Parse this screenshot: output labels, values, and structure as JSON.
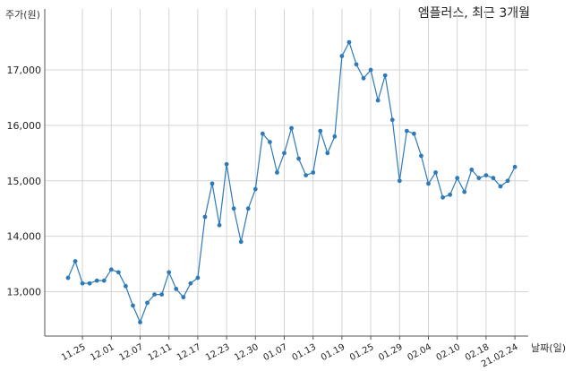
{
  "chart_data": {
    "type": "line",
    "title": "엠플러스, 최근 3개월",
    "ylabel": "주가(원)",
    "xlabel": "날짜(일)",
    "ylim": [
      12200,
      18100
    ],
    "yticks": [
      13000,
      14000,
      15000,
      16000,
      17000
    ],
    "ytick_labels": [
      "13,000",
      "14,000",
      "15,000",
      "16,000",
      "17,000"
    ],
    "xtick_labels": [
      "11.25",
      "12.01",
      "12.07",
      "12.11",
      "12.17",
      "12.23",
      "12.30",
      "01.07",
      "01.13",
      "01.19",
      "01.25",
      "01.29",
      "02.04",
      "02.10",
      "02.18",
      "21.02.24"
    ],
    "xtick_index": [
      2,
      6,
      10,
      14,
      18,
      22,
      26,
      30,
      34,
      38,
      42,
      46,
      50,
      54,
      58,
      62
    ],
    "grid": true,
    "color": "#2e7ab8",
    "values": [
      13250,
      13550,
      13150,
      13150,
      13200,
      13200,
      13400,
      13350,
      13100,
      12750,
      12450,
      12800,
      12950,
      12950,
      13350,
      13050,
      12900,
      13150,
      13250,
      14350,
      14950,
      14200,
      15300,
      14500,
      13900,
      14500,
      14850,
      15850,
      15700,
      15150,
      15500,
      15950,
      15400,
      15100,
      15150,
      15900,
      15500,
      15800,
      17250,
      17500,
      17100,
      16850,
      17000,
      16450,
      16900,
      16100,
      15000,
      15900,
      15850,
      15450,
      14950,
      15150,
      14700,
      14750,
      15050,
      14800,
      15200,
      15050,
      15100,
      15050,
      14900,
      15000,
      15250
    ]
  }
}
